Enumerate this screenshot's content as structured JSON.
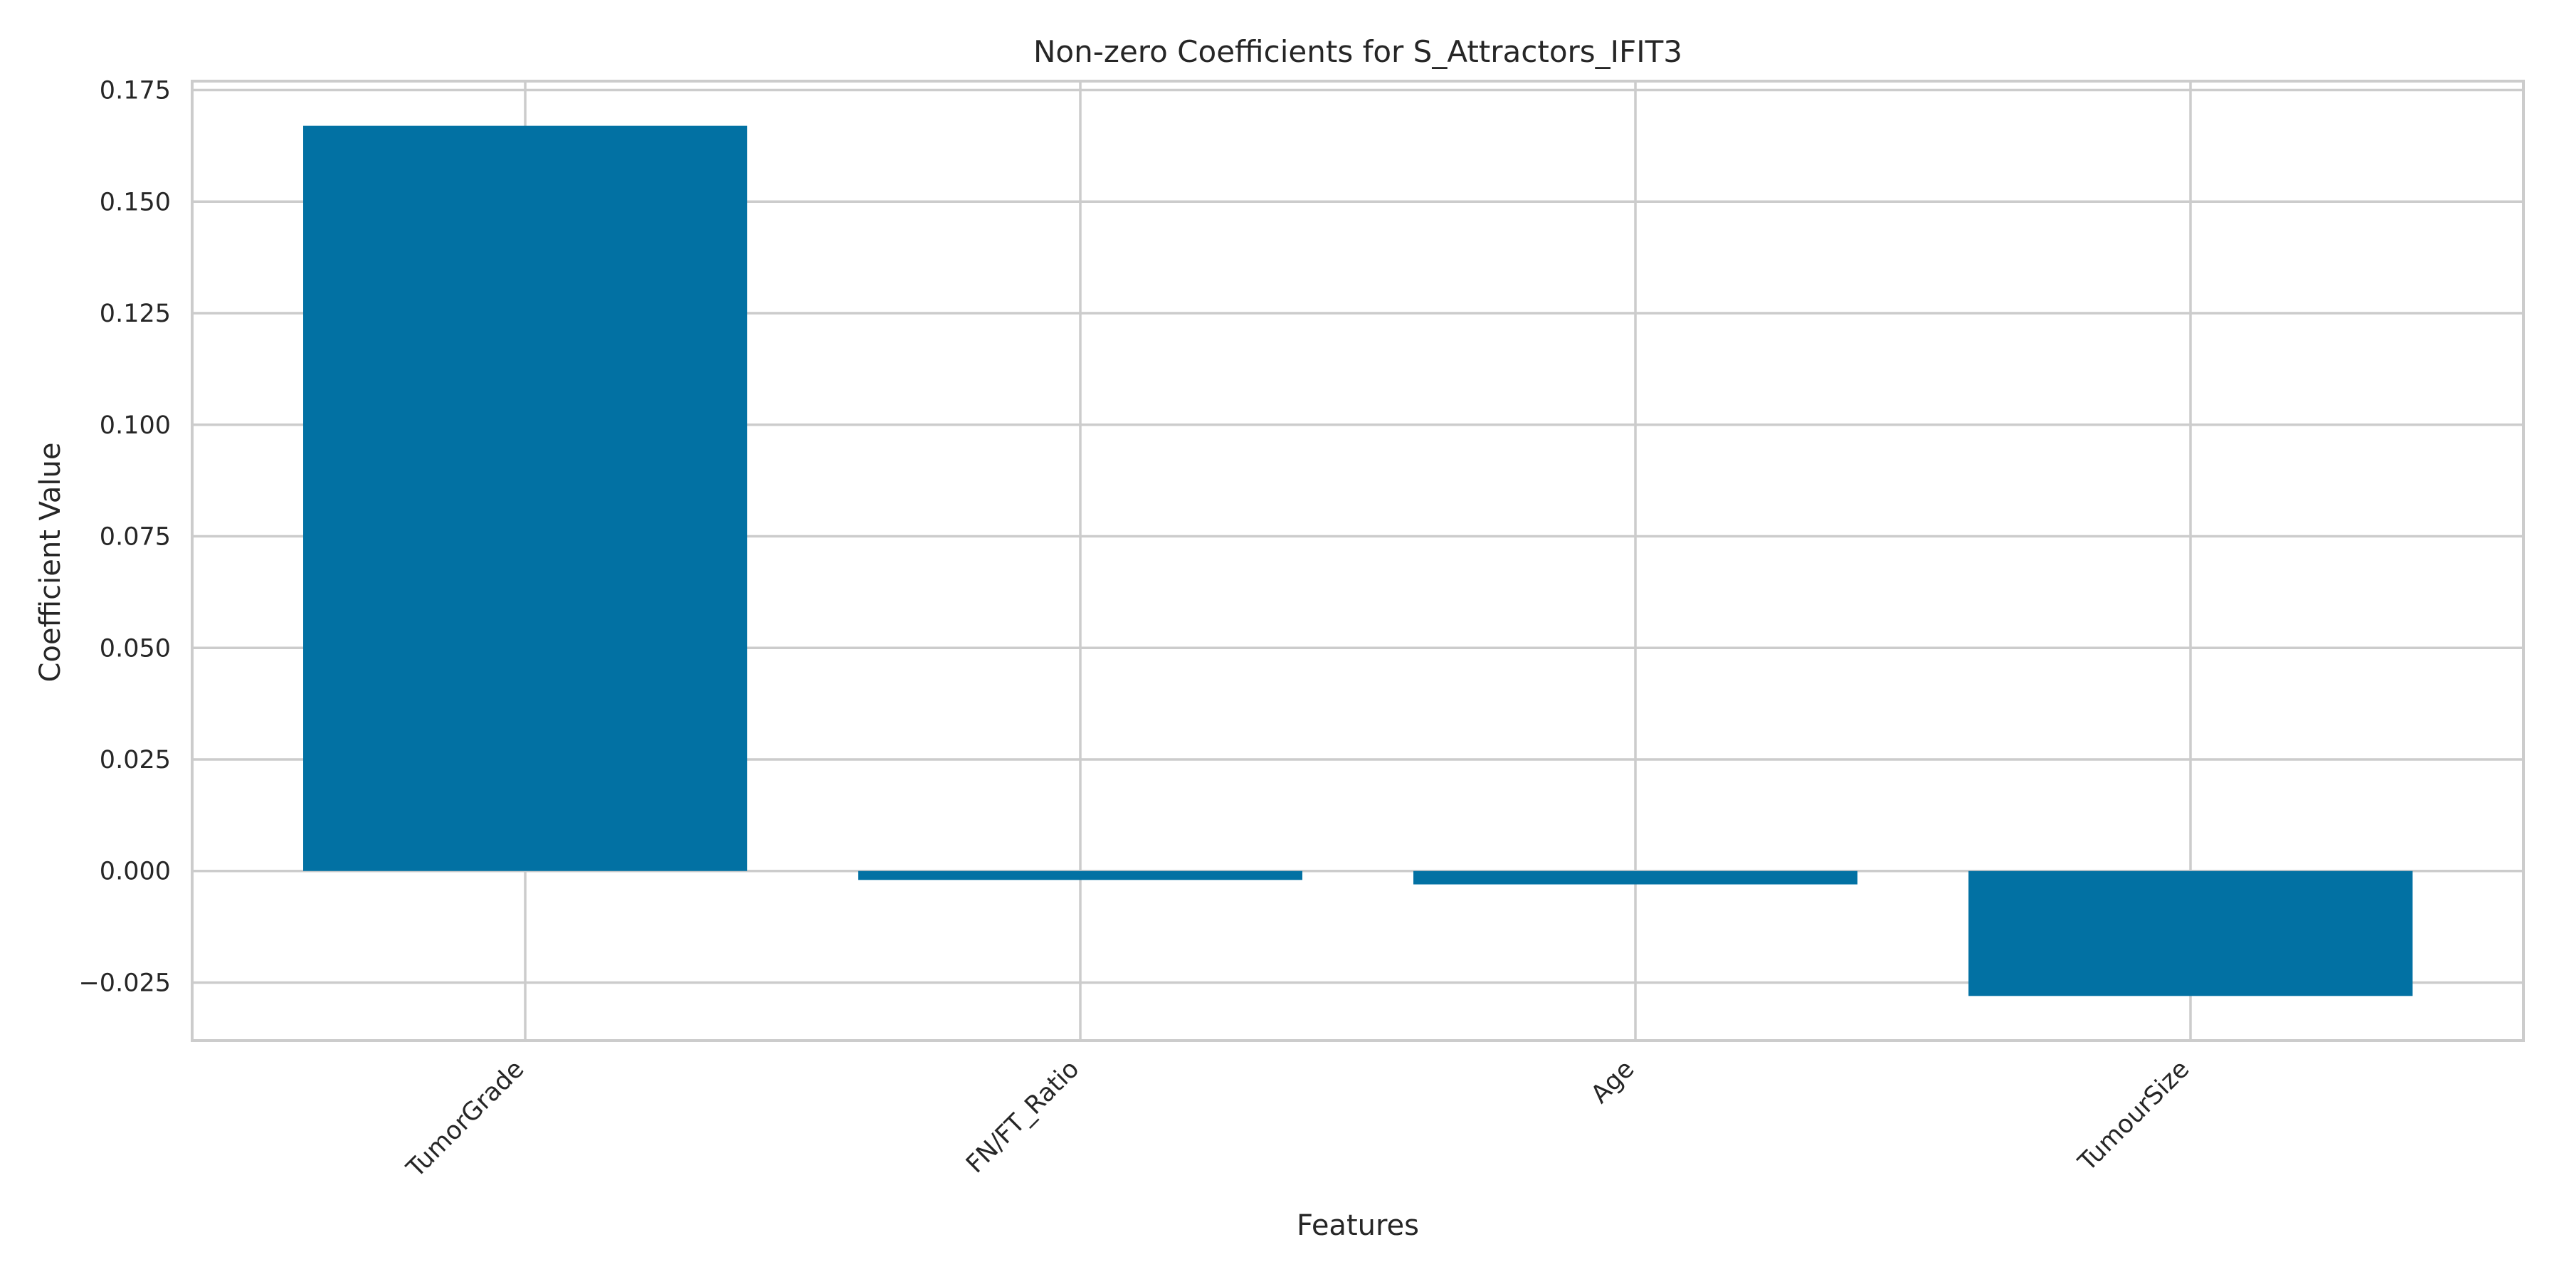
{
  "chart_data": {
    "type": "bar",
    "title": "Non-zero Coefficients for S_Attractors_IFIT3",
    "xlabel": "Features",
    "ylabel": "Coefficient Value",
    "categories": [
      "TumorGrade",
      "FN/FT_Ratio",
      "Age",
      "TumourSize"
    ],
    "values": [
      0.167,
      -0.002,
      -0.003,
      -0.028
    ],
    "ylim": [
      -0.038,
      0.177
    ],
    "yticks": [
      -0.025,
      0.0,
      0.025,
      0.05,
      0.075,
      0.1,
      0.125,
      0.15,
      0.175
    ],
    "ytick_labels": [
      "−0.025",
      "0.000",
      "0.025",
      "0.050",
      "0.075",
      "0.100",
      "0.125",
      "0.150",
      "0.175"
    ],
    "grid": true,
    "legend": "none",
    "bar_color": "#0271a3",
    "grid_color": "#cccccc",
    "background_color": "#ffffff"
  }
}
